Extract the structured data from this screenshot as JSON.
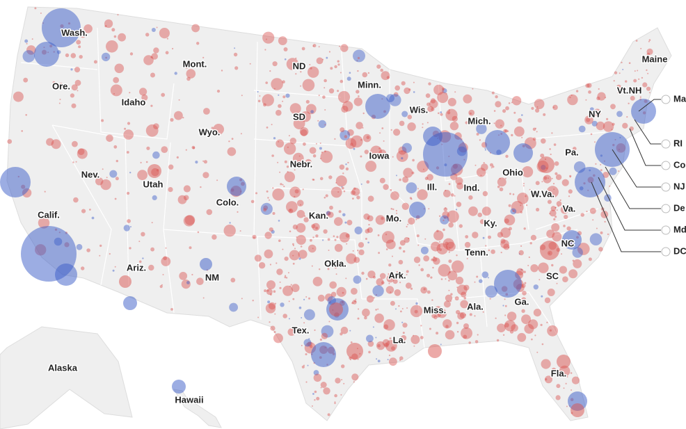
{
  "states": [
    "Wash.",
    "Ore.",
    "Calif.",
    "Idaho",
    "Nev.",
    "Mont.",
    "Wyo.",
    "Utah",
    "Colo.",
    "Ariz.",
    "NM",
    "ND",
    "SD",
    "Nebr.",
    "Kan.",
    "Okla.",
    "Tex.",
    "Minn.",
    "Iowa",
    "Mo.",
    "Ark.",
    "La.",
    "Wis.",
    "Ill.",
    "Mich.",
    "Ind.",
    "Ohio",
    "Ky.",
    "Tenn.",
    "Miss.",
    "Ala.",
    "Ga.",
    "Fla.",
    "SC",
    "NC",
    "Va.",
    "W.Va.",
    "Pa.",
    "NY",
    "Maine",
    "Vt.",
    "NH"
  ],
  "insets": [
    "Alaska",
    "Hawaii"
  ],
  "callouts": [
    "Ma",
    "RI",
    "Co",
    "NJ",
    "De",
    "Md",
    "DC"
  ]
}
